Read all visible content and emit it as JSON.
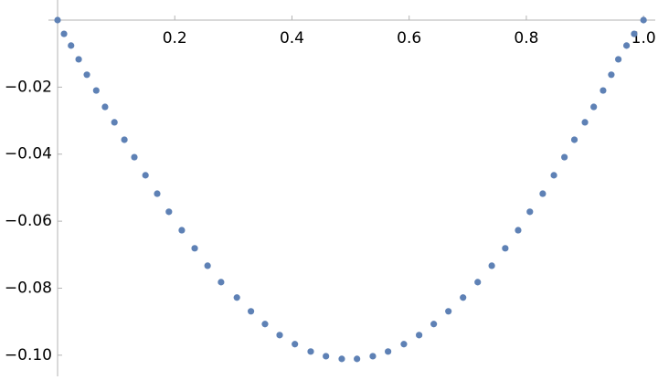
{
  "chart_data": {
    "type": "scatter",
    "color": "#5e81b5",
    "x": [
      0,
      0.011,
      0.023,
      0.036,
      0.05,
      0.066,
      0.081,
      0.097,
      0.114,
      0.131,
      0.15,
      0.17,
      0.19,
      0.212,
      0.234,
      0.256,
      0.279,
      0.306,
      0.33,
      0.354,
      0.379,
      0.405,
      0.432,
      0.458,
      0.485,
      0.511,
      0.538,
      0.564,
      0.591,
      0.617,
      0.642,
      0.667,
      0.692,
      0.717,
      0.741,
      0.764,
      0.786,
      0.806,
      0.828,
      0.847,
      0.865,
      0.882,
      0.9,
      0.915,
      0.931,
      0.945,
      0.957,
      0.971,
      0.984,
      1.0
    ],
    "values": [
      0,
      -0.0041,
      -0.0076,
      -0.0117,
      -0.0163,
      -0.021,
      -0.0259,
      -0.0305,
      -0.0357,
      -0.0409,
      -0.0463,
      -0.0518,
      -0.0572,
      -0.0627,
      -0.0681,
      -0.0733,
      -0.0782,
      -0.0828,
      -0.0869,
      -0.0907,
      -0.094,
      -0.0967,
      -0.0989,
      -0.1003,
      -0.1011,
      -0.1011,
      -0.1003,
      -0.0989,
      -0.0967,
      -0.094,
      -0.0907,
      -0.0869,
      -0.0828,
      -0.0782,
      -0.0733,
      -0.0681,
      -0.0627,
      -0.0572,
      -0.0518,
      -0.0463,
      -0.0409,
      -0.0357,
      -0.0305,
      -0.0259,
      -0.021,
      -0.0163,
      -0.0117,
      -0.0076,
      -0.0041,
      0
    ],
    "xlim": [
      0,
      1.02
    ],
    "ylim": [
      -0.1074,
      0.006
    ],
    "xticks": [
      0.2,
      0.4,
      0.6,
      0.8,
      {
        "value": 1,
        "label": "1.0"
      }
    ],
    "yticks": [
      {
        "value": -0.02,
        "label": "−0.02"
      },
      {
        "value": -0.04,
        "label": "−0.04"
      },
      {
        "value": -0.06,
        "label": "−0.06"
      },
      {
        "value": -0.08,
        "label": "−0.08"
      },
      {
        "value": -0.1,
        "label": "−0.10"
      }
    ]
  }
}
